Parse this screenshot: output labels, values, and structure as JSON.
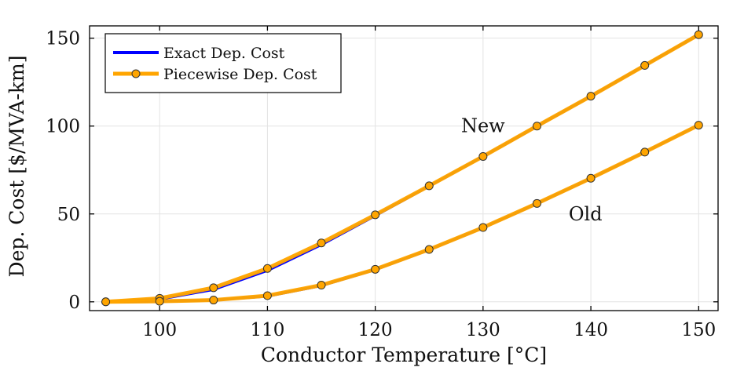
{
  "chart_data": {
    "type": "line",
    "title": "",
    "xlabel": "Conductor Temperature [°C]",
    "ylabel": "Dep. Cost [$/MVA-km]",
    "xlim": [
      93.5,
      151.8
    ],
    "ylim": [
      -5,
      157
    ],
    "xticks": [
      100,
      110,
      120,
      130,
      140,
      150
    ],
    "yticks": [
      0,
      50,
      100,
      150
    ],
    "grid": true,
    "legend_position": "top-left",
    "legend": [
      {
        "label": "Exact Dep. Cost",
        "color": "#0000ff",
        "marker": "none"
      },
      {
        "label": "Piecewise Dep. Cost",
        "color": "#ffa500",
        "marker": "circle"
      }
    ],
    "annotations": [
      {
        "text": "New",
        "x": 130,
        "y": 100
      },
      {
        "text": "Old",
        "x": 139.5,
        "y": 50
      }
    ],
    "x": [
      95,
      100,
      105,
      110,
      115,
      120,
      125,
      130,
      135,
      140,
      145,
      150
    ],
    "series": [
      {
        "name": "Exact Dep. Cost (New)",
        "style": "exact",
        "values": [
          0,
          1.5,
          7.0,
          17.8,
          32.5,
          49.0,
          65.8,
          82.7,
          99.8,
          117.0,
          134.5,
          152.0
        ]
      },
      {
        "name": "Piecewise Dep. Cost (New)",
        "style": "piecewise",
        "values": [
          0,
          2,
          8,
          19,
          33.5,
          49.5,
          66,
          82.7,
          100,
          117,
          134.5,
          152
        ]
      },
      {
        "name": "Exact Dep. Cost (Old)",
        "style": "exact",
        "values": [
          0,
          0.2,
          0.9,
          3.2,
          9.2,
          18.3,
          29.6,
          42.2,
          55.8,
          70.2,
          85.2,
          100.5
        ]
      },
      {
        "name": "Piecewise Dep. Cost (Old)",
        "style": "piecewise",
        "values": [
          0,
          0.3,
          1,
          3.5,
          9.5,
          18.5,
          29.8,
          42.3,
          56,
          70.3,
          85.2,
          100.5
        ]
      }
    ]
  }
}
